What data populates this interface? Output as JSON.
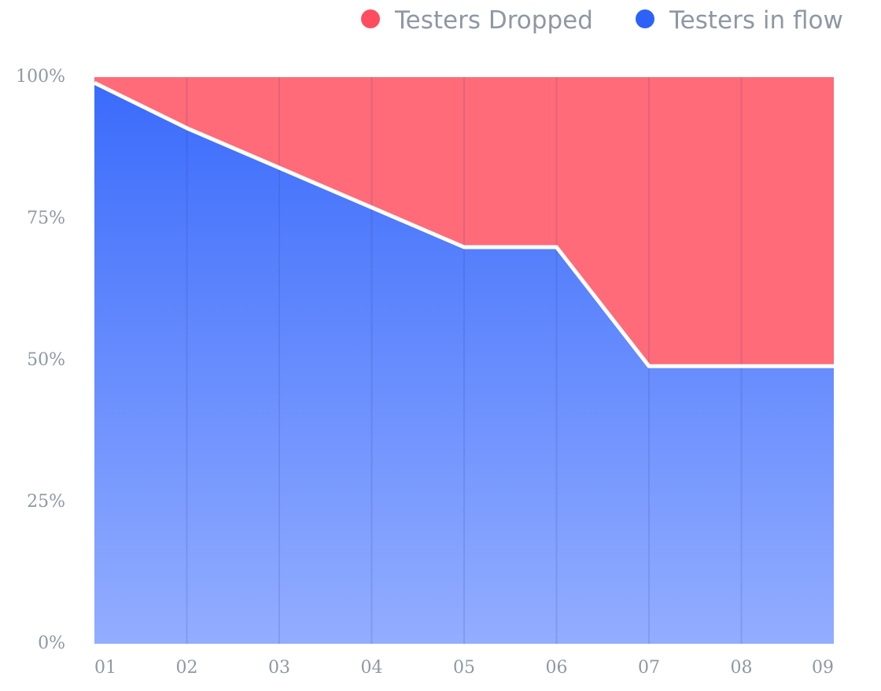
{
  "chart_data": {
    "type": "area",
    "stacked": true,
    "normalized_percent": true,
    "categories": [
      "01",
      "02",
      "03",
      "04",
      "05",
      "06",
      "07",
      "08",
      "09"
    ],
    "series": [
      {
        "name": "Testers in flow",
        "values": [
          99,
          91,
          84,
          77,
          70,
          70,
          49,
          49,
          49
        ],
        "color": "#3a6bfb"
      },
      {
        "name": "Testers Dropped",
        "values": [
          1,
          9,
          16,
          23,
          30,
          30,
          51,
          51,
          51
        ],
        "color": "#ff6b78"
      }
    ],
    "legend": {
      "position": "top-right",
      "items": [
        {
          "label": "Testers Dropped",
          "color": "#ff4d5f"
        },
        {
          "label": "Testers in flow",
          "color": "#2c62f7"
        }
      ]
    },
    "y_ticks": [
      "0%",
      "25%",
      "50%",
      "75%",
      "100%"
    ],
    "y_tick_values": [
      0,
      25,
      50,
      75,
      100
    ],
    "ylim": [
      0,
      100
    ],
    "grid": {
      "vertical": true,
      "horizontal": false
    },
    "title": "",
    "xlabel": "",
    "ylabel": ""
  }
}
